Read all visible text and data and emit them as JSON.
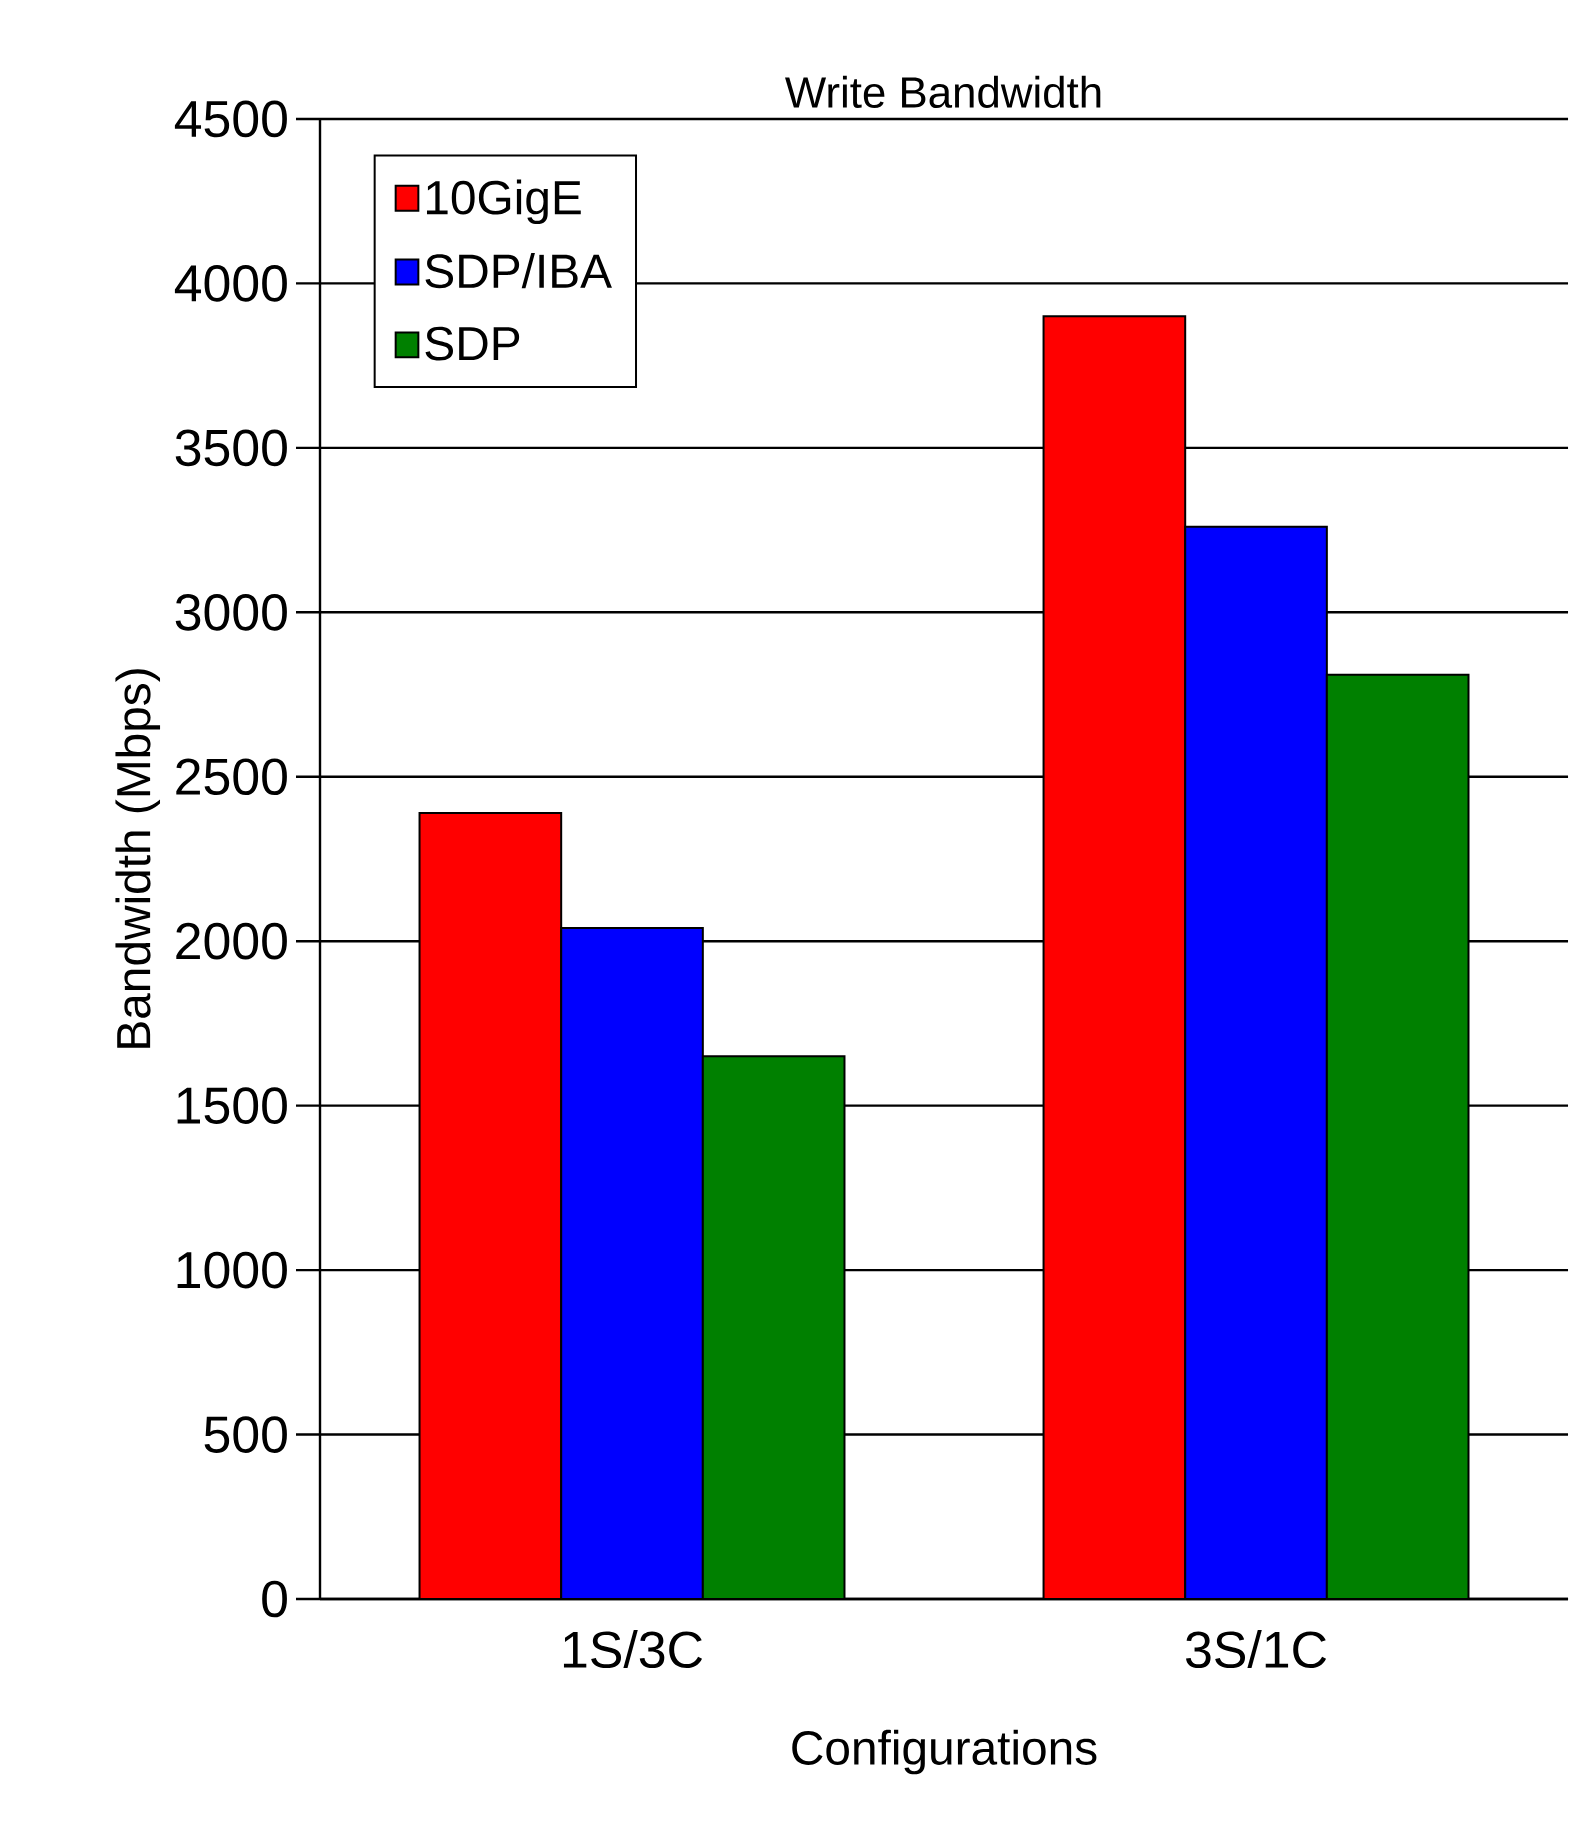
{
  "chart_data": {
    "type": "bar",
    "title": "Write Bandwidth",
    "xlabel": "Configurations",
    "ylabel": "Bandwidth (Mbps)",
    "categories": [
      "1S/3C",
      "3S/1C"
    ],
    "series": [
      {
        "name": "10GigE",
        "color": "#ff0000",
        "values": [
          2390,
          3900
        ]
      },
      {
        "name": "SDP/IBA",
        "color": "#0000ff",
        "values": [
          2040,
          3260
        ]
      },
      {
        "name": "SDP",
        "color": "#008000",
        "values": [
          1650,
          2810
        ]
      }
    ],
    "ylim": [
      0,
      4500
    ],
    "yticks": [
      0,
      500,
      1000,
      1500,
      2000,
      2500,
      3000,
      3500,
      4000,
      4500
    ],
    "grid": "y",
    "legend": "top left"
  }
}
